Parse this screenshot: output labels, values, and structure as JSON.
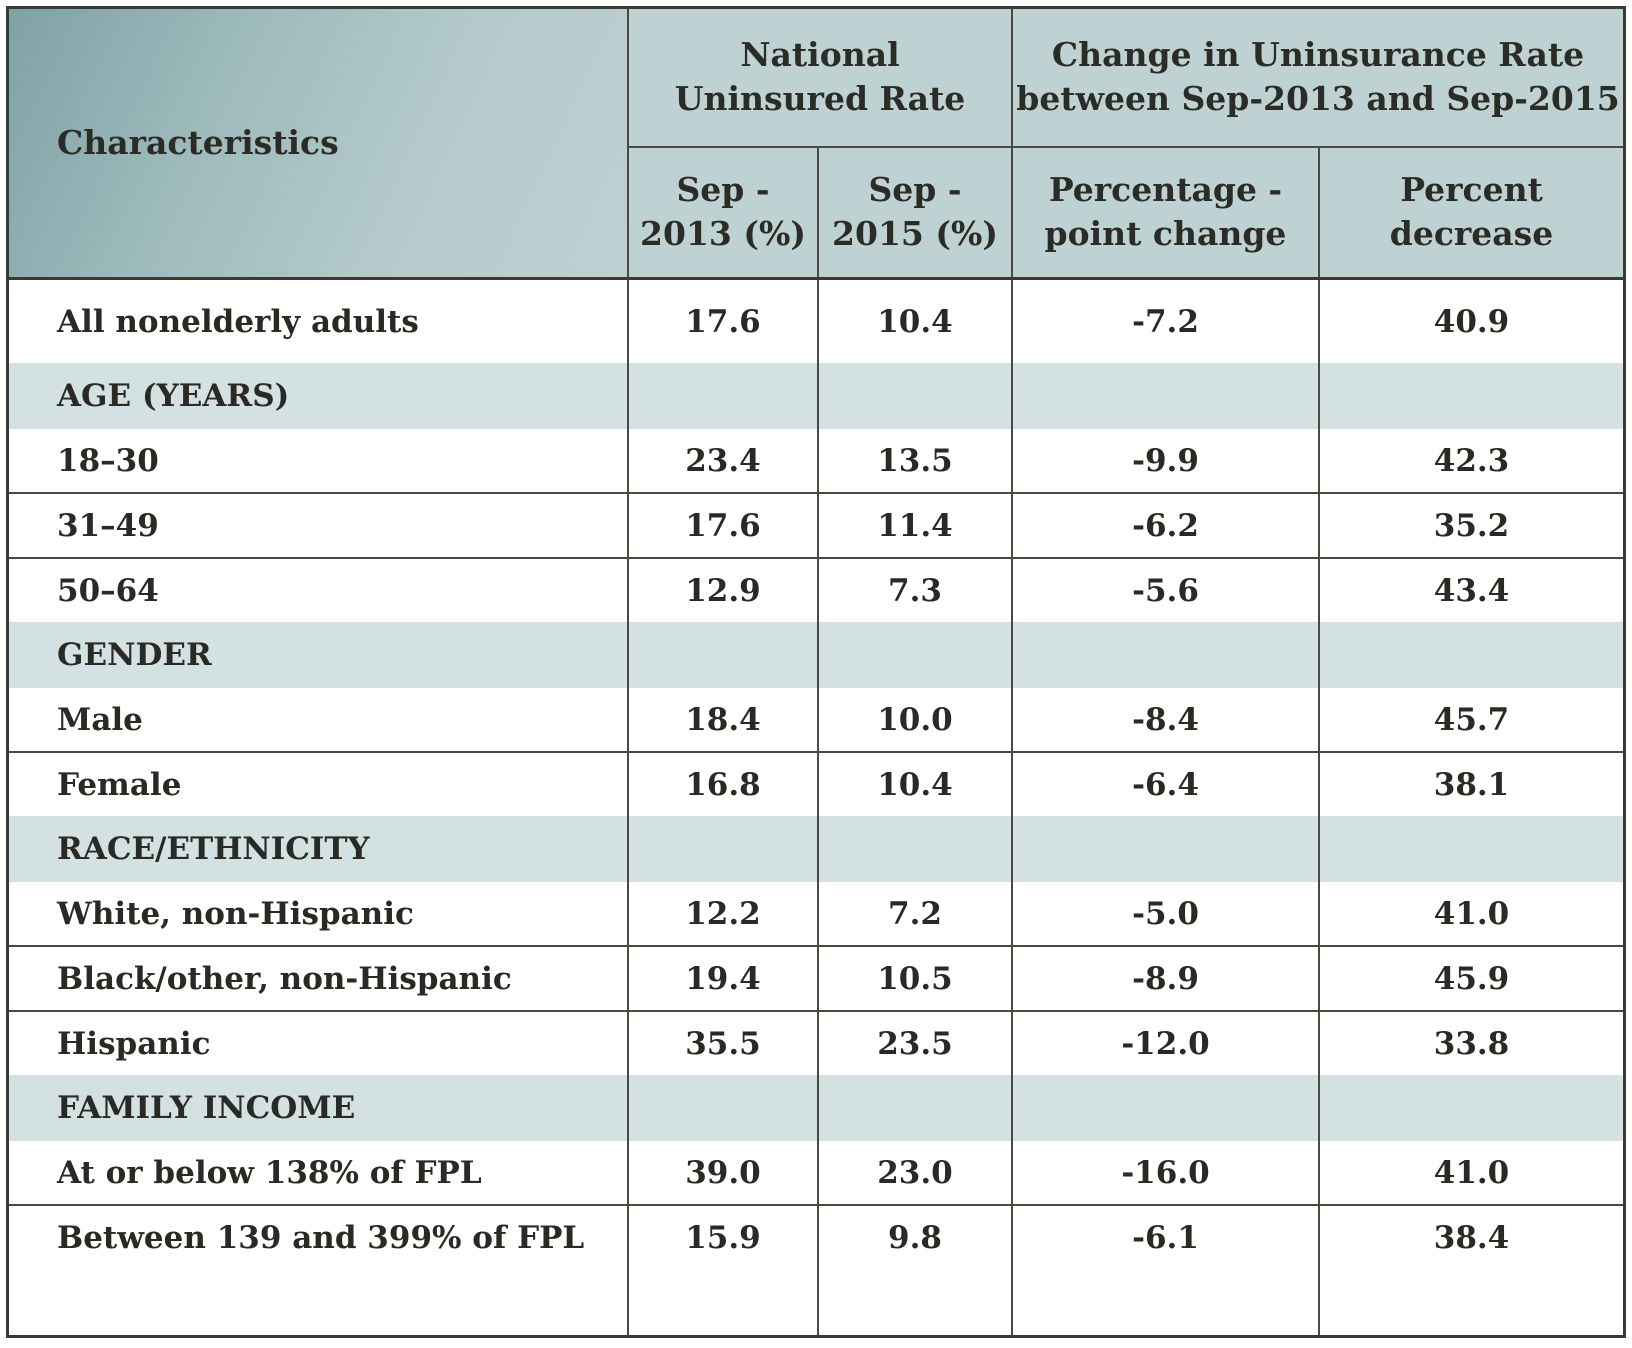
{
  "header": {
    "characteristics": "Characteristics",
    "group_national_line1": "National",
    "group_national_line2": "Uninsured Rate",
    "group_change_line1": "Change in Uninsurance Rate",
    "group_change_line2": "between Sep-2013 and Sep-2015",
    "sep2013_line1": "Sep -",
    "sep2013_line2": "2013 (%)",
    "sep2015_line1": "Sep -",
    "sep2015_line2": "2015 (%)",
    "ppchange_line1": "Percentage -",
    "ppchange_line2": "point change",
    "pctdecrease_line1": "Percent",
    "pctdecrease_line2": "decrease"
  },
  "rows": {
    "all": {
      "label": "All nonelderly adults",
      "v2013": "17.6",
      "v2015": "10.4",
      "pp": "-7.2",
      "pct": "40.9"
    },
    "age_section": "AGE (YEARS)",
    "age_18_30": {
      "label": "18–30",
      "v2013": "23.4",
      "v2015": "13.5",
      "pp": "-9.9",
      "pct": "42.3"
    },
    "age_31_49": {
      "label": "31–49",
      "v2013": "17.6",
      "v2015": "11.4",
      "pp": "-6.2",
      "pct": "35.2"
    },
    "age_50_64": {
      "label": "50–64",
      "v2013": "12.9",
      "v2015": "7.3",
      "pp": "-5.6",
      "pct": "43.4"
    },
    "gender_section": "GENDER",
    "male": {
      "label": "Male",
      "v2013": "18.4",
      "v2015": "10.0",
      "pp": "-8.4",
      "pct": "45.7"
    },
    "female": {
      "label": "Female",
      "v2013": "16.8",
      "v2015": "10.4",
      "pp": "-6.4",
      "pct": "38.1"
    },
    "race_section": "RACE/ETHNICITY",
    "white": {
      "label": "White, non-Hispanic",
      "v2013": "12.2",
      "v2015": "7.2",
      "pp": "-5.0",
      "pct": "41.0"
    },
    "black": {
      "label": "Black/other, non-Hispanic",
      "v2013": "19.4",
      "v2015": "10.5",
      "pp": "-8.9",
      "pct": "45.9"
    },
    "hispanic": {
      "label": "Hispanic",
      "v2013": "35.5",
      "v2015": "23.5",
      "pp": "-12.0",
      "pct": "33.8"
    },
    "income_section": "FAMILY INCOME",
    "income_low": {
      "label": "At or below 138% of FPL",
      "v2013": "39.0",
      "v2015": "23.0",
      "pp": "-16.0",
      "pct": "41.0"
    },
    "income_mid": {
      "label": "Between 139 and 399% of FPL",
      "v2013": "15.9",
      "v2015": "9.8",
      "pp": "-6.1",
      "pct": "38.4"
    }
  }
}
